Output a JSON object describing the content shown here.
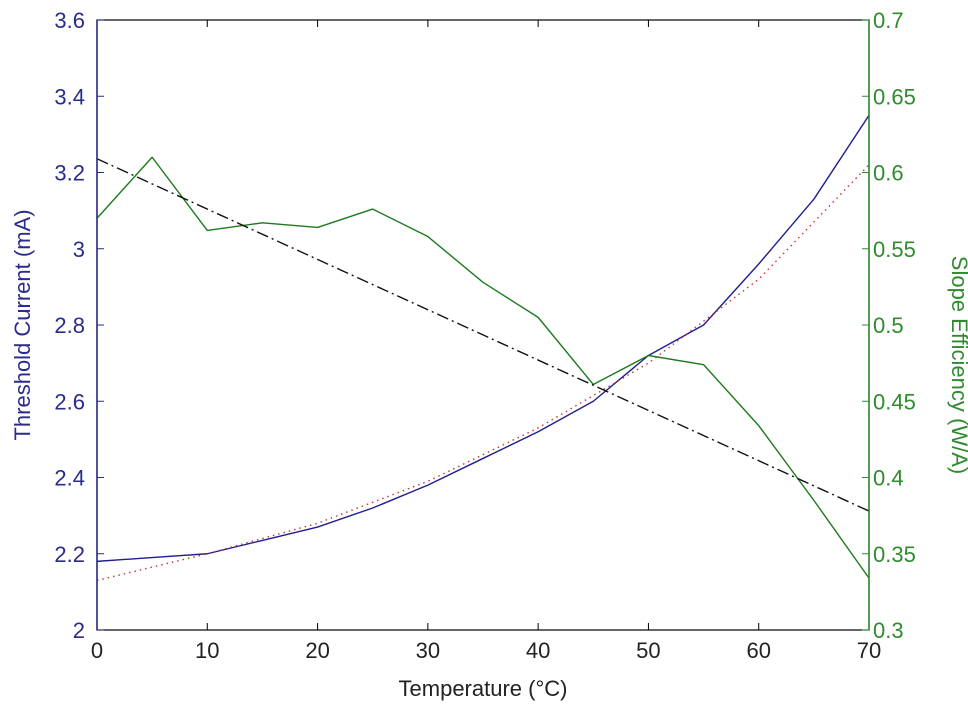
{
  "chart_data": {
    "type": "line",
    "xlabel": "Temperature (°C)",
    "ylabel_left": "Threshold Current (mA)",
    "ylabel_right": "Slope Efficiency (W/A)",
    "xlim": [
      0,
      70
    ],
    "ylim_left": [
      2,
      3.6
    ],
    "ylim_right": [
      0.3,
      0.7
    ],
    "x_ticks": [
      0,
      10,
      20,
      30,
      40,
      50,
      60,
      70
    ],
    "y_left_ticks": [
      2,
      2.2,
      2.4,
      2.6,
      2.8,
      3,
      3.2,
      3.4,
      3.6
    ],
    "y_right_ticks": [
      0.3,
      0.35,
      0.4,
      0.45,
      0.5,
      0.55,
      0.6,
      0.65,
      0.7
    ],
    "x_tick_labels": [
      "0",
      "10",
      "20",
      "30",
      "40",
      "50",
      "60",
      "70"
    ],
    "y_left_tick_labels": [
      "2",
      "2.2",
      "2.4",
      "2.6",
      "2.8",
      "3",
      "3.2",
      "3.4",
      "3.6"
    ],
    "y_right_tick_labels": [
      "0.3",
      "0.35",
      "0.4",
      "0.45",
      "0.5",
      "0.55",
      "0.6",
      "0.65",
      "0.7"
    ],
    "grid": false,
    "colors": {
      "left_axis": "#2b2b8c",
      "right_axis": "#2e8b2e",
      "threshold_line": "#1f1f8f",
      "threshold_fit": "#c83232",
      "slope_line": "#1d7a1d",
      "slope_fit": "#111111"
    },
    "series": [
      {
        "axis": "left",
        "style": "solid",
        "x": [
          0,
          5,
          10,
          15,
          20,
          25,
          30,
          35,
          40,
          45,
          50,
          55,
          60,
          65,
          70
        ],
        "y": [
          2.18,
          2.19,
          2.2,
          2.235,
          2.27,
          2.32,
          2.38,
          2.45,
          2.52,
          2.6,
          2.72,
          2.8,
          2.96,
          3.13,
          3.35
        ]
      },
      {
        "axis": "left",
        "style": "dotted",
        "x": [
          0,
          10,
          20,
          30,
          40,
          50,
          60,
          70
        ],
        "y": [
          2.13,
          2.2,
          2.28,
          2.39,
          2.53,
          2.7,
          2.92,
          3.22
        ]
      },
      {
        "axis": "right",
        "style": "solid",
        "x": [
          0,
          5,
          10,
          15,
          20,
          25,
          30,
          35,
          40,
          45,
          50,
          55,
          60,
          65,
          70
        ],
        "y": [
          0.57,
          0.61,
          0.562,
          0.567,
          0.564,
          0.576,
          0.558,
          0.528,
          0.505,
          0.461,
          0.48,
          0.474,
          0.434,
          0.385,
          0.334
        ]
      },
      {
        "axis": "right",
        "style": "dashdot",
        "x": [
          0,
          70
        ],
        "y": [
          0.609,
          0.378
        ]
      }
    ]
  }
}
